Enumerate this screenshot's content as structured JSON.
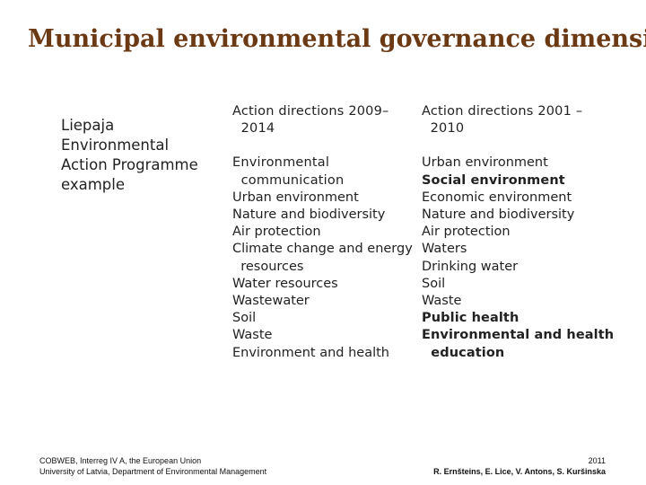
{
  "title": "Municipal environmental governance dimension",
  "left_label": {
    "lines": [
      "Liepaja",
      "Environmental",
      "Action Programme",
      "example"
    ]
  },
  "column_2009": {
    "heading_lines": [
      "Action directions 2009–",
      "  2014"
    ],
    "first_item_lines": [
      "Environmental",
      "  communication"
    ],
    "items": [
      "Urban environment",
      "Nature and biodiversity",
      "Air protection",
      "Climate change and energy",
      "  resources",
      "Water resources",
      "Wastewater",
      "Soil",
      "Waste",
      "Environment and health"
    ]
  },
  "column_2001": {
    "heading_lines": [
      "Action directions 2001 –",
      "  2010"
    ],
    "items": [
      {
        "text": "Urban environment",
        "bold": false
      },
      {
        "text": "Social environment",
        "bold": true
      },
      {
        "text": "Economic environment",
        "bold": false
      },
      {
        "text": "Nature and biodiversity",
        "bold": false
      },
      {
        "text": "Air protection",
        "bold": false
      },
      {
        "text": "Waters",
        "bold": false
      },
      {
        "text": "Drinking water",
        "bold": false
      },
      {
        "text": "Soil",
        "bold": false
      },
      {
        "text": "Waste",
        "bold": false
      },
      {
        "text": "Public health",
        "bold": true
      },
      {
        "text": "Environmental and health",
        "bold": true
      },
      {
        "text": "  education",
        "bold": true
      }
    ]
  },
  "footer": {
    "left_line1": "COBWEB, Interreg IV A, the European Union",
    "left_line2": "University of Latvia, Department of Environmental Management",
    "year": "2011",
    "authors": "R. Ernšteins, E. Lice, V. Antons, S. Kuršinska"
  }
}
